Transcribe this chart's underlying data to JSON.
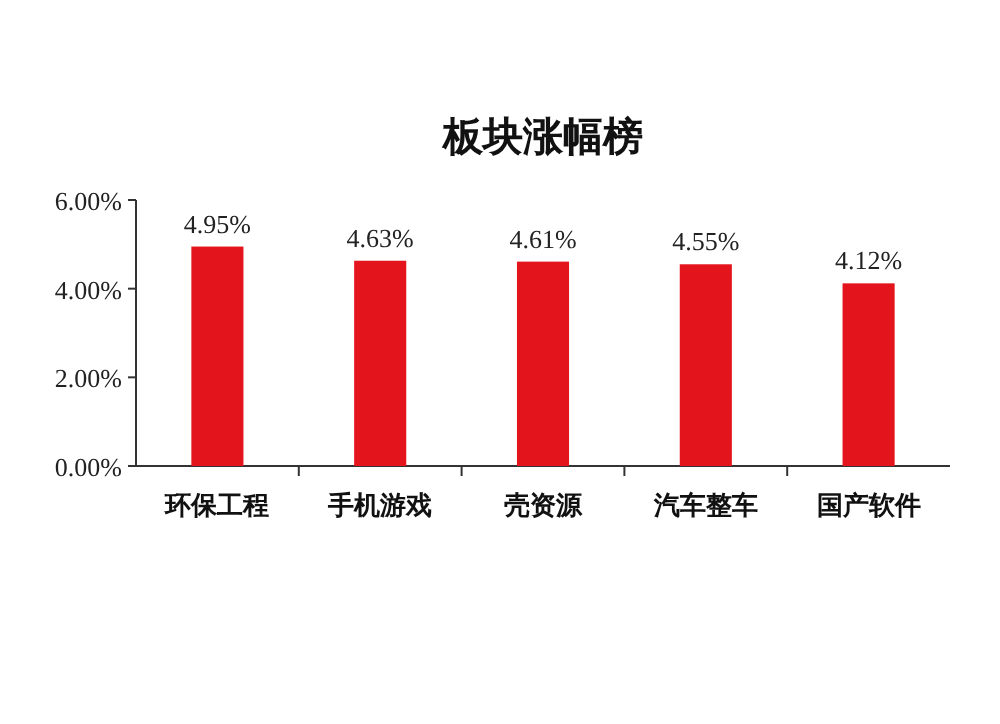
{
  "chart_data": {
    "type": "bar",
    "title": "板块涨幅榜",
    "categories": [
      "环保工程",
      "手机游戏",
      "壳资源",
      "汽车整车",
      "国产软件"
    ],
    "values": [
      4.95,
      4.63,
      4.61,
      4.55,
      4.12
    ],
    "value_labels": [
      "4.95%",
      "4.63%",
      "4.61%",
      "4.55%",
      "4.12%"
    ],
    "color": "#e3141b",
    "ylim": [
      0,
      6
    ],
    "yticks": [
      {
        "value": 0,
        "label": "0.00%"
      },
      {
        "value": 2,
        "label": "2.00%"
      },
      {
        "value": 4,
        "label": "4.00%"
      },
      {
        "value": 6,
        "label": "6.00%"
      }
    ],
    "grid": false
  }
}
